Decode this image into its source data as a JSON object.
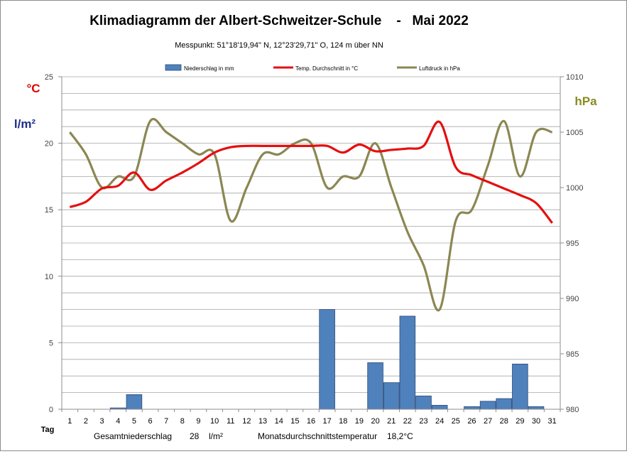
{
  "chart_data": {
    "type": "bar+line",
    "title": "Klimadiagramm der Albert-Schweitzer-Schule    -   Mai 2022",
    "subtitle": "Messpunkt:  51°18'19,94\" N,  12°23'29,71\" O,  124 m über NN",
    "left_unit_temp": "°C",
    "left_unit_precip": "l/m²",
    "right_unit": "hPa",
    "x_axis_label": "Tag",
    "x": [
      1,
      2,
      3,
      4,
      5,
      6,
      7,
      8,
      9,
      10,
      11,
      12,
      13,
      14,
      15,
      16,
      17,
      18,
      19,
      20,
      21,
      22,
      23,
      24,
      25,
      26,
      27,
      28,
      29,
      30,
      31
    ],
    "y_left_ticks": [
      0,
      5,
      10,
      15,
      20,
      25
    ],
    "y_left_range": [
      0,
      25
    ],
    "y_right_ticks": [
      980,
      985,
      990,
      995,
      1000,
      1005,
      1010
    ],
    "y_right_range": [
      980,
      1010
    ],
    "grid": true,
    "legend_position": "top",
    "colors": {
      "precip": "#4f81bd",
      "precip_border": "#2e4a75",
      "temp": "#e50f0f",
      "pressure": "#8b8752",
      "left_temp_unit": "#e00000",
      "left_precip_unit": "#1f2d8c",
      "right_unit": "#8b8a20"
    },
    "series": [
      {
        "name": "Niederschlag in mm",
        "kind": "bar",
        "axis": "left",
        "values": [
          0,
          0,
          0,
          0.1,
          1.1,
          0,
          0,
          0,
          0,
          0,
          0,
          0,
          0,
          0,
          0,
          0,
          7.5,
          0,
          0,
          3.5,
          2.0,
          7.0,
          1.0,
          0.3,
          0,
          0.2,
          0.6,
          0.8,
          3.4,
          0.2,
          0
        ]
      },
      {
        "name": "Temp. Durchschnitt in °C",
        "kind": "line",
        "axis": "left",
        "values": [
          15.2,
          15.6,
          16.6,
          16.8,
          17.8,
          16.5,
          17.2,
          17.8,
          18.5,
          19.3,
          19.7,
          19.8,
          19.8,
          19.8,
          19.8,
          19.8,
          19.8,
          19.3,
          19.9,
          19.4,
          19.5,
          19.6,
          19.8,
          21.6,
          18.2,
          17.6,
          17.1,
          16.6,
          16.1,
          15.5,
          14.0
        ]
      },
      {
        "name": "Luftdruck in hPa",
        "kind": "line",
        "axis": "right",
        "values": [
          1005,
          1003,
          1000,
          1001,
          1001,
          1006,
          1005,
          1004,
          1003,
          1003,
          997,
          1000,
          1003,
          1003,
          1004,
          1004,
          1000,
          1001,
          1001,
          1004,
          1000,
          996,
          993,
          989,
          997,
          998,
          1002,
          1006,
          1001,
          1005,
          1005
        ]
      }
    ]
  },
  "footer": {
    "total_label": "Gesamtniederschlag",
    "total_value": "28",
    "total_unit": "l/m²",
    "avg_label": "Monatsdurchschnittstemperatur",
    "avg_value": "18,2°C"
  }
}
